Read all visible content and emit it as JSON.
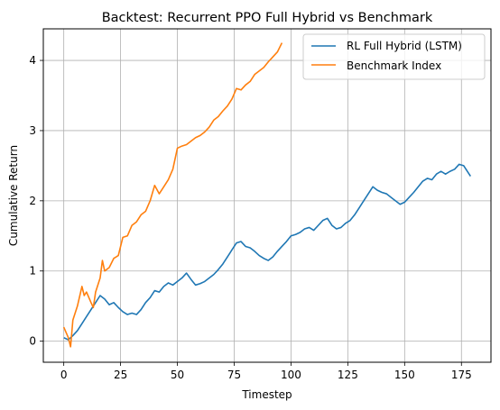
{
  "chart_data": {
    "type": "line",
    "title": "Backtest: Recurrent PPO Full Hybrid vs Benchmark",
    "xlabel": "Timestep",
    "ylabel": "Cumulative Return",
    "xlim": [
      -9,
      188
    ],
    "ylim": [
      -0.3,
      4.45
    ],
    "xticks": [
      0,
      25,
      50,
      75,
      100,
      125,
      150,
      175
    ],
    "yticks": [
      0,
      1,
      2,
      3,
      4
    ],
    "grid": true,
    "legend": "top-right",
    "series": [
      {
        "name": "RL Full Hybrid (LSTM)",
        "color": "#1f77b4",
        "x": [
          0,
          2,
          4,
          6,
          8,
          10,
          12,
          14,
          16,
          18,
          20,
          22,
          24,
          26,
          28,
          30,
          32,
          34,
          36,
          38,
          40,
          42,
          44,
          46,
          48,
          50,
          52,
          54,
          56,
          58,
          60,
          62,
          64,
          66,
          68,
          70,
          72,
          74,
          76,
          78,
          80,
          82,
          84,
          86,
          88,
          90,
          92,
          94,
          96,
          98,
          100,
          102,
          104,
          106,
          108,
          110,
          112,
          114,
          116,
          118,
          120,
          122,
          124,
          126,
          128,
          130,
          132,
          134,
          136,
          138,
          140,
          142,
          144,
          146,
          148,
          150,
          152,
          154,
          156,
          158,
          160,
          162,
          164,
          166,
          168,
          170,
          172,
          174,
          176,
          178,
          179
        ],
        "y": [
          0.05,
          0.02,
          0.08,
          0.15,
          0.25,
          0.35,
          0.45,
          0.55,
          0.65,
          0.6,
          0.52,
          0.55,
          0.48,
          0.42,
          0.38,
          0.4,
          0.38,
          0.45,
          0.55,
          0.62,
          0.72,
          0.7,
          0.78,
          0.83,
          0.8,
          0.85,
          0.9,
          0.97,
          0.88,
          0.8,
          0.82,
          0.85,
          0.9,
          0.95,
          1.02,
          1.1,
          1.2,
          1.3,
          1.4,
          1.42,
          1.35,
          1.33,
          1.28,
          1.22,
          1.18,
          1.15,
          1.2,
          1.28,
          1.35,
          1.42,
          1.5,
          1.52,
          1.55,
          1.6,
          1.62,
          1.58,
          1.65,
          1.72,
          1.75,
          1.65,
          1.6,
          1.62,
          1.68,
          1.72,
          1.8,
          1.9,
          2.0,
          2.1,
          2.2,
          2.15,
          2.12,
          2.1,
          2.05,
          2.0,
          1.95,
          1.98,
          2.05,
          2.12,
          2.2,
          2.28,
          2.32,
          2.3,
          2.38,
          2.42,
          2.38,
          2.42,
          2.45,
          2.52,
          2.5,
          2.4,
          2.35
        ]
      },
      {
        "name": "Benchmark Index",
        "color": "#ff7f0e",
        "x": [
          0,
          2,
          3,
          4,
          6,
          8,
          9,
          10,
          12,
          13,
          14,
          16,
          17,
          18,
          20,
          22,
          24,
          26,
          28,
          30,
          32,
          34,
          36,
          38,
          40,
          42,
          44,
          46,
          48,
          50,
          52,
          54,
          56,
          58,
          60,
          62,
          64,
          66,
          68,
          70,
          72,
          74,
          76,
          78,
          80,
          82,
          84,
          86,
          88,
          90,
          92,
          94,
          96
        ],
        "y": [
          0.2,
          0.05,
          -0.08,
          0.3,
          0.5,
          0.78,
          0.65,
          0.7,
          0.55,
          0.48,
          0.7,
          0.9,
          1.15,
          1.0,
          1.05,
          1.18,
          1.22,
          1.48,
          1.5,
          1.65,
          1.7,
          1.8,
          1.85,
          2.0,
          2.22,
          2.1,
          2.2,
          2.3,
          2.45,
          2.75,
          2.78,
          2.8,
          2.85,
          2.9,
          2.93,
          2.98,
          3.05,
          3.15,
          3.2,
          3.28,
          3.35,
          3.45,
          3.6,
          3.58,
          3.65,
          3.7,
          3.8,
          3.85,
          3.9,
          3.98,
          4.05,
          4.12,
          4.25
        ]
      }
    ]
  }
}
